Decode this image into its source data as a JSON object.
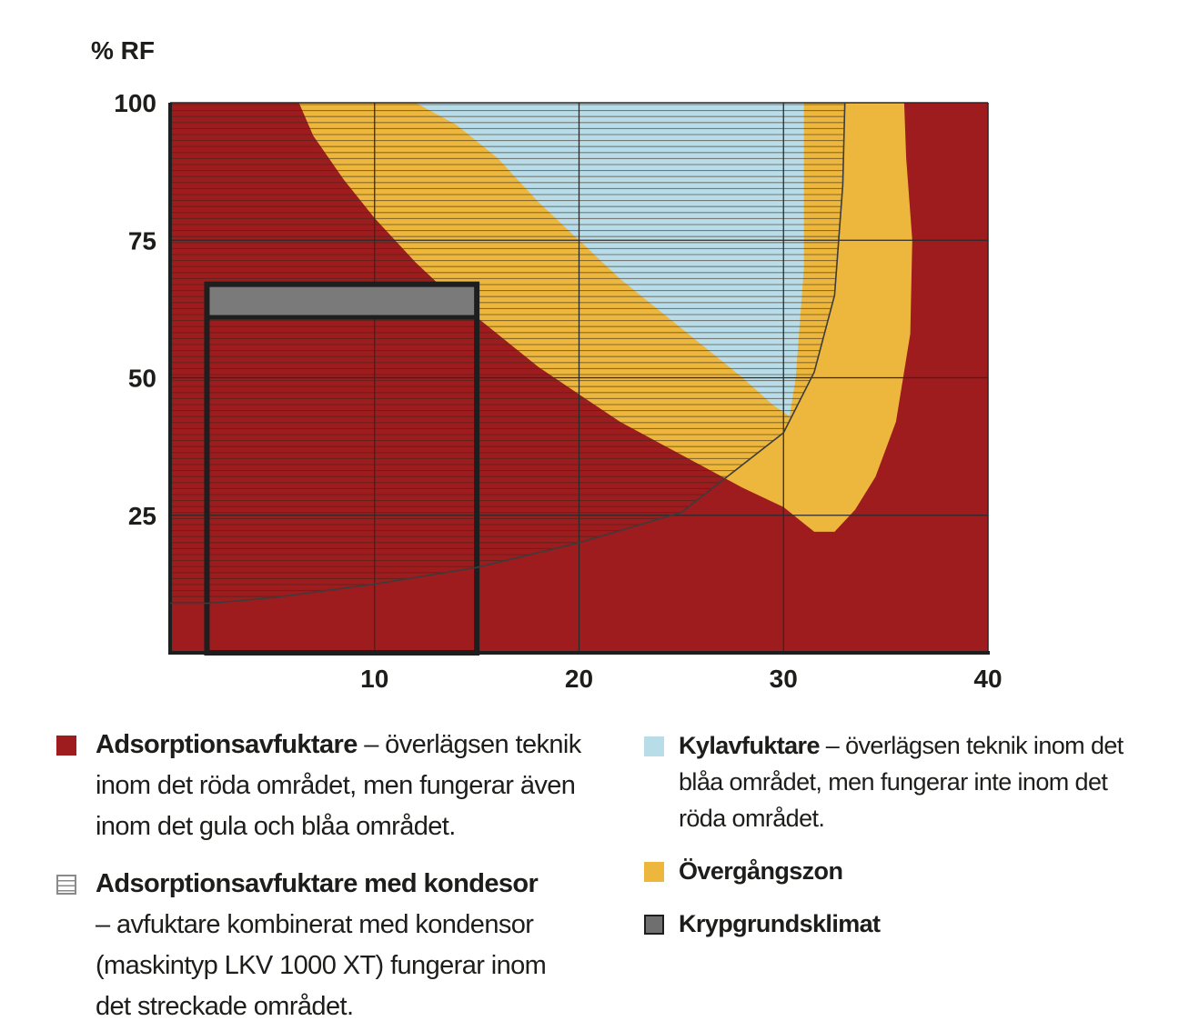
{
  "chart_data": {
    "type": "area",
    "ylabel": "% RF",
    "xlabel": "",
    "title": "",
    "xlim": [
      0,
      40
    ],
    "ylim": [
      0,
      100
    ],
    "x_ticks": [
      "10",
      "20",
      "30",
      "40"
    ],
    "y_ticks": [
      "100",
      "75",
      "50",
      "25"
    ],
    "grid": true,
    "hatch_start_y": 10,
    "regions": [
      {
        "id": "red",
        "color": "#9e1b1e",
        "points": [
          [
            0,
            0
          ],
          [
            40,
            0
          ],
          [
            40,
            100
          ],
          [
            0,
            100
          ]
        ]
      },
      {
        "id": "yellow",
        "color": "#ecb73c",
        "points": [
          [
            6.3,
            100
          ],
          [
            7,
            94
          ],
          [
            8.5,
            86
          ],
          [
            10,
            79
          ],
          [
            12,
            71
          ],
          [
            14,
            64
          ],
          [
            16,
            58
          ],
          [
            18,
            52
          ],
          [
            20,
            47
          ],
          [
            22,
            42
          ],
          [
            24,
            38
          ],
          [
            26,
            34
          ],
          [
            28,
            30
          ],
          [
            30,
            26.5
          ],
          [
            31.5,
            22
          ],
          [
            32.5,
            22
          ],
          [
            33.5,
            26
          ],
          [
            34.5,
            32
          ],
          [
            35.5,
            42
          ],
          [
            36.2,
            58
          ],
          [
            36.3,
            75
          ],
          [
            36,
            90
          ],
          [
            35.9,
            100
          ]
        ]
      },
      {
        "id": "blue",
        "color": "#b8dce8",
        "points": [
          [
            12,
            100
          ],
          [
            14,
            96
          ],
          [
            16,
            90
          ],
          [
            18,
            82
          ],
          [
            20,
            75
          ],
          [
            22,
            68
          ],
          [
            24,
            62
          ],
          [
            26,
            56
          ],
          [
            28,
            50
          ],
          [
            29.5,
            45
          ],
          [
            30.3,
            43
          ],
          [
            30.6,
            50
          ],
          [
            31,
            70
          ],
          [
            31,
            100
          ]
        ]
      },
      {
        "id": "gray",
        "color": "#7a7a7a",
        "points": [
          [
            1.8,
            61
          ],
          [
            15,
            61
          ],
          [
            15,
            67
          ],
          [
            1.8,
            67
          ]
        ]
      }
    ],
    "hatch_boundary": [
      [
        0,
        9
      ],
      [
        2,
        9
      ],
      [
        5,
        10
      ],
      [
        10,
        12.5
      ],
      [
        15,
        15.5
      ],
      [
        20,
        20
      ],
      [
        25,
        25.5
      ],
      [
        30,
        40
      ],
      [
        31.5,
        51
      ],
      [
        32.5,
        65
      ],
      [
        32.9,
        85
      ],
      [
        33,
        100
      ]
    ],
    "crawlspace_box": {
      "x_min": 1.8,
      "x_max": 15,
      "y_min": 0,
      "y_max": 67,
      "band_min": 61
    }
  },
  "legend": [
    {
      "color": "#9e1b1e",
      "icon": "red-square-icon",
      "title": "Adsorptionsavfuktare",
      "lines": [
        " – överlägsen teknik",
        "inom det röda området, men fungerar även",
        "inom det gula och blåa området."
      ]
    },
    {
      "color": "hatch",
      "icon": "hatched-square-icon",
      "title": "Adsorptionsavfuktare med kondesor",
      "lines": [
        "",
        "– avfuktare kombinerat med kondensor",
        "(maskintyp LKV 1000 XT) fungerar inom",
        "det streckade området."
      ]
    },
    {
      "color": "#b8dce8",
      "icon": "light-blue-square-icon",
      "title": "Kylavfuktare",
      "lines": [
        " – överlägsen teknik inom det",
        "blåa området, men fungerar inte inom det",
        "röda området."
      ]
    },
    {
      "color": "#ecb73c",
      "icon": "yellow-square-icon",
      "title": "Övergångszon",
      "lines": []
    },
    {
      "color": "#6f6f6f",
      "icon": "gray-square-icon",
      "title": "Krypgrundsklimat",
      "lines": []
    }
  ]
}
